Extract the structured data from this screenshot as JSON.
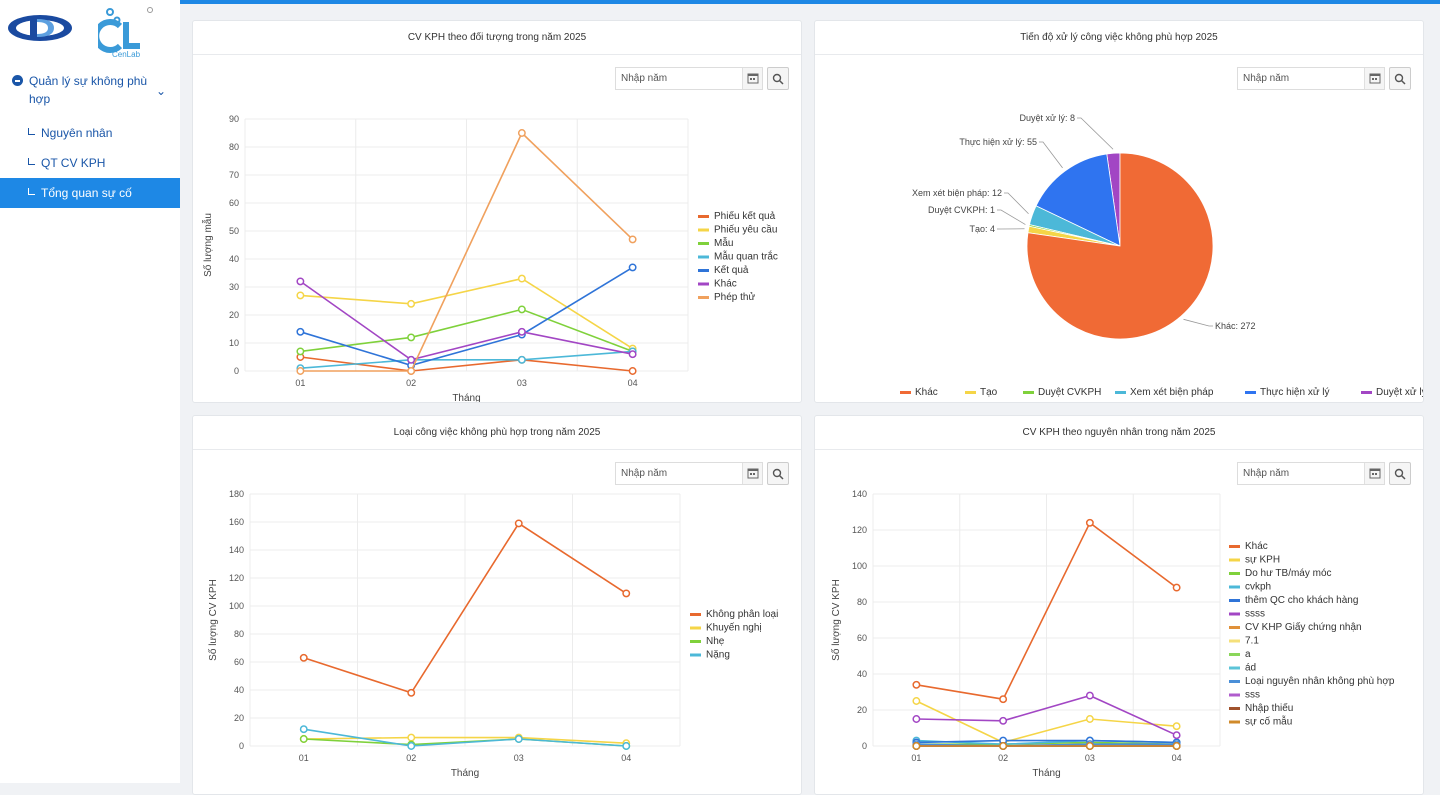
{
  "sidebar": {
    "logo2_text": "CenLab",
    "group_label": "Quản lý sự không phù hợp",
    "items": [
      {
        "label": "Nguyên nhân",
        "active": false
      },
      {
        "label": "QT CV KPH",
        "active": false
      },
      {
        "label": "Tổng quan sự cố",
        "active": true
      }
    ]
  },
  "year_placeholder": "Nhập năm",
  "colors": {
    "accent": "#1e88e5",
    "menu_text": "#1a56a8"
  },
  "panels": {
    "p1": {
      "title": "CV KPH theo đối tượng trong năm 2025"
    },
    "p2": {
      "title": "Tiến độ xử lý công việc không phù hợp 2025"
    },
    "p3": {
      "title": "Loại công việc không phù hợp trong năm 2025"
    },
    "p4": {
      "title": "CV KPH theo nguyên nhân trong năm 2025"
    }
  },
  "chart_data": [
    {
      "type": "line",
      "xlabel": "Tháng",
      "ylabel": "Số lượng mẫu",
      "categories": [
        "01",
        "02",
        "03",
        "04"
      ],
      "ylim": [
        0,
        90
      ],
      "yticks": [
        0,
        10,
        20,
        30,
        40,
        50,
        60,
        70,
        80,
        90
      ],
      "grid": true,
      "legend": "right",
      "series": [
        {
          "name": "Phiếu kết quả",
          "color": "#e8692e",
          "values": [
            5,
            0,
            4,
            0
          ]
        },
        {
          "name": "Phiếu yêu cầu",
          "color": "#f5d547",
          "values": [
            27,
            24,
            33,
            8
          ]
        },
        {
          "name": "Mẫu",
          "color": "#7fd13b",
          "values": [
            7,
            12,
            22,
            7
          ]
        },
        {
          "name": "Mẫu quan trắc",
          "color": "#4cb8d8",
          "values": [
            1,
            4,
            4,
            7
          ]
        },
        {
          "name": "Kết quả",
          "color": "#2f74d8",
          "values": [
            14,
            2,
            13,
            37
          ]
        },
        {
          "name": "Khác",
          "color": "#a246c4",
          "values": [
            32,
            4,
            14,
            6
          ]
        },
        {
          "name": "Phép thử",
          "color": "#f0a15e",
          "values": [
            0,
            0,
            85,
            47
          ]
        }
      ]
    },
    {
      "type": "pie",
      "legend": "bottom",
      "slices": [
        {
          "name": "Khác",
          "value": 272,
          "color": "#f06a35",
          "label": "Khác: 272"
        },
        {
          "name": "Tạo",
          "value": 4,
          "color": "#f5d547",
          "label": "Tạo: 4"
        },
        {
          "name": "Duyệt CVKPH",
          "value": 1,
          "color": "#7fd13b",
          "label": "Duyệt CVKPH: 1"
        },
        {
          "name": "Xem xét biện pháp",
          "value": 12,
          "color": "#4cb8d8",
          "label": "Xem xét biện pháp: 12"
        },
        {
          "name": "Thực hiện xử lý",
          "value": 55,
          "color": "#2f74f0",
          "label": "Thực hiện xử lý: 55"
        },
        {
          "name": "Duyệt xử lý",
          "value": 8,
          "color": "#a246c4",
          "label": "Duyệt xử lý: 8"
        }
      ]
    },
    {
      "type": "line",
      "xlabel": "Tháng",
      "ylabel": "Số lượng CV KPH",
      "categories": [
        "01",
        "02",
        "03",
        "04"
      ],
      "ylim": [
        0,
        180
      ],
      "yticks": [
        0,
        20,
        40,
        60,
        80,
        100,
        120,
        140,
        160,
        180
      ],
      "grid": true,
      "legend": "right",
      "series": [
        {
          "name": "Không phân loại",
          "color": "#e8692e",
          "values": [
            63,
            38,
            159,
            109
          ]
        },
        {
          "name": "Khuyến nghị",
          "color": "#f5d547",
          "values": [
            5,
            6,
            6,
            2
          ]
        },
        {
          "name": "Nhẹ",
          "color": "#7fd13b",
          "values": [
            5,
            1,
            5,
            0
          ]
        },
        {
          "name": "Nặng",
          "color": "#4cb8d8",
          "values": [
            12,
            0,
            5,
            0
          ]
        }
      ]
    },
    {
      "type": "line",
      "xlabel": "Tháng",
      "ylabel": "Số lượng CV KPH",
      "categories": [
        "01",
        "02",
        "03",
        "04"
      ],
      "ylim": [
        0,
        140
      ],
      "yticks": [
        0,
        20,
        40,
        60,
        80,
        100,
        120,
        140
      ],
      "grid": true,
      "legend": "right",
      "series": [
        {
          "name": "Khác",
          "color": "#e8692e",
          "values": [
            34,
            26,
            124,
            88
          ]
        },
        {
          "name": "sự KPH",
          "color": "#f5d547",
          "values": [
            25,
            2,
            15,
            11
          ]
        },
        {
          "name": "Do hư TB/máy móc",
          "color": "#7fd13b",
          "values": [
            1,
            1,
            2,
            1
          ]
        },
        {
          "name": "cvkph",
          "color": "#4cb8d8",
          "values": [
            3,
            1,
            3,
            2
          ]
        },
        {
          "name": "thêm QC cho khách hàng",
          "color": "#2f74d8",
          "values": [
            2,
            3,
            3,
            2
          ]
        },
        {
          "name": "ssss",
          "color": "#a246c4",
          "values": [
            15,
            14,
            28,
            6
          ]
        },
        {
          "name": "CV KHP Giấy chứng nhận",
          "color": "#e0913a",
          "values": [
            0,
            0,
            1,
            0
          ]
        },
        {
          "name": "7.1",
          "color": "#f5e07a",
          "values": [
            0,
            0,
            0,
            0
          ]
        },
        {
          "name": "a",
          "color": "#8ad65a",
          "values": [
            0,
            0,
            0,
            0
          ]
        },
        {
          "name": "ád",
          "color": "#5cc4d8",
          "values": [
            0,
            0,
            0,
            0
          ]
        },
        {
          "name": "Loại nguyên nhân không phù hợp",
          "color": "#4a8fd8",
          "values": [
            1,
            0,
            1,
            1
          ]
        },
        {
          "name": "sss",
          "color": "#b05ccd",
          "values": [
            0,
            0,
            0,
            0
          ]
        },
        {
          "name": "Nhập thiếu",
          "color": "#a0522d",
          "values": [
            0,
            0,
            0,
            0
          ]
        },
        {
          "name": "sự cố  mẫu",
          "color": "#d08a2a",
          "values": [
            0,
            0,
            0,
            0
          ]
        }
      ]
    }
  ]
}
